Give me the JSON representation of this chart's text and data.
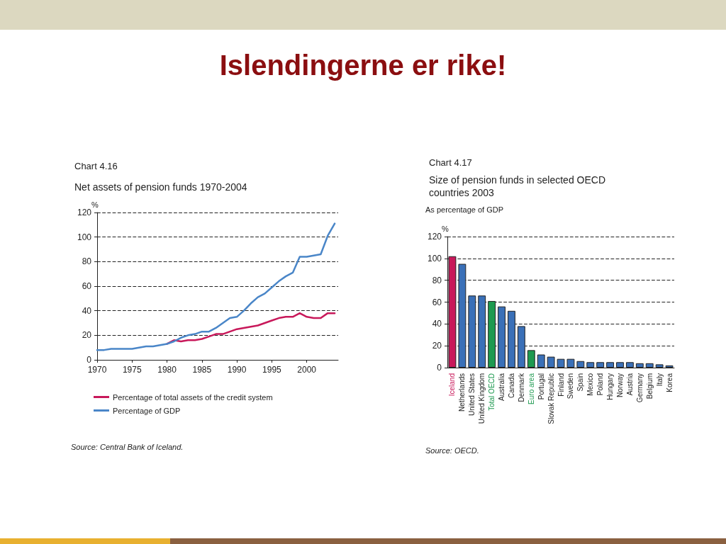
{
  "chart_data": [
    {
      "type": "line",
      "title": "Chart 4.16",
      "subtitle": "Net assets of pension funds 1970-2004",
      "ylabel": "%",
      "annotations": [
        "Islendingerne er rike!",
        "Source: Central Bank of Iceland."
      ],
      "x": [
        1970,
        1971,
        1972,
        1973,
        1974,
        1975,
        1976,
        1977,
        1978,
        1979,
        1980,
        1981,
        1982,
        1983,
        1984,
        1985,
        1986,
        1987,
        1988,
        1989,
        1990,
        1991,
        1992,
        1993,
        1994,
        1995,
        1996,
        1997,
        1998,
        1999,
        2000,
        2001,
        2002,
        2003,
        2004
      ],
      "series": [
        {
          "name": "Percentage of total assets of the credit system",
          "color": "#c8185a",
          "values": [
            null,
            null,
            null,
            null,
            null,
            null,
            null,
            null,
            null,
            null,
            13,
            16,
            15,
            16,
            16,
            17,
            19,
            21,
            21,
            23,
            25,
            26,
            27,
            28,
            30,
            32,
            34,
            35,
            35,
            38,
            35,
            34,
            34,
            38,
            38
          ]
        },
        {
          "name": "Percentage of GDP",
          "color": "#4a86c8",
          "values": [
            8,
            8,
            9,
            9,
            9,
            9,
            10,
            11,
            11,
            12,
            13,
            15,
            18,
            20,
            21,
            23,
            23,
            26,
            30,
            34,
            35,
            40,
            46,
            51,
            54,
            59,
            64,
            68,
            71,
            84,
            84,
            85,
            86,
            101,
            111
          ]
        }
      ],
      "xlim": [
        1970,
        2004.5
      ],
      "xticks": [
        1970,
        1975,
        1980,
        1985,
        1990,
        1995,
        2000
      ],
      "ylim": [
        0,
        120
      ],
      "yticks": [
        0,
        20,
        40,
        60,
        80,
        100,
        120
      ],
      "grid": "y",
      "legend": "bottom left",
      "marker": "none"
    },
    {
      "type": "bar",
      "title": "Chart 4.17",
      "subtitle": "Size of pension funds in selected OECD countries 2003",
      "ylabel": "%",
      "annotations": [
        "As percentage of GDP",
        "Source: OECD."
      ],
      "categories": [
        "Iceland",
        "Netherlands",
        "United States",
        "United Kingdom",
        "Total OECD",
        "Australia",
        "Canada",
        "Denmark",
        "Euro area",
        "Portugal",
        "Slovak Republic",
        "Finland",
        "Sweden",
        "Spain",
        "Mexico",
        "Poland",
        "Hungary",
        "Norway",
        "Austria",
        "Germany",
        "Belgium",
        "Italy",
        "Korea"
      ],
      "values": [
        102,
        95,
        66,
        66,
        61,
        56,
        52,
        38,
        16,
        12,
        10,
        8,
        8,
        6,
        5,
        5,
        5,
        5,
        5,
        4,
        4,
        3,
        2
      ],
      "colors": [
        "#c8185a",
        "#3a70b8",
        "#3a70b8",
        "#3a70b8",
        "#1e9a50",
        "#3a70b8",
        "#3a70b8",
        "#3a70b8",
        "#1e9a50",
        "#3a70b8",
        "#3a70b8",
        "#3a70b8",
        "#3a70b8",
        "#3a70b8",
        "#3a70b8",
        "#3a70b8",
        "#3a70b8",
        "#3a70b8",
        "#3a70b8",
        "#3a70b8",
        "#3a70b8",
        "#3a70b8",
        "#3a70b8"
      ],
      "ylim": [
        0,
        120
      ],
      "yticks": [
        0,
        20,
        40,
        60,
        80,
        100,
        120
      ],
      "grid": "y",
      "legend": false
    }
  ]
}
